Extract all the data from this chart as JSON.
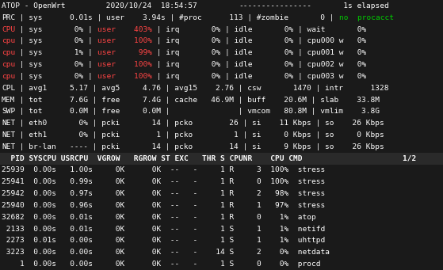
{
  "bg_color": "#1a1a1a",
  "text_color": "#c0c0c0",
  "red_color": "#ff4444",
  "green_color": "#00cc00",
  "title_bg": "#1a1a1a",
  "proc_header_bg": "#2a2a2a",
  "font_size": 6.8,
  "dpi": 100,
  "figw": 5.59,
  "figh": 3.41,
  "lines": [
    {
      "type": "title",
      "parts": [
        {
          "t": "ATOP - OpenWrt",
          "c": "white"
        },
        {
          "t": "         2020/10/24  18:54:57         ",
          "c": "white"
        },
        {
          "t": "----------------",
          "c": "white"
        },
        {
          "t": "       1s elapsed",
          "c": "white"
        }
      ]
    },
    {
      "type": "row",
      "parts": [
        {
          "t": "PRC",
          "c": "white"
        },
        {
          "t": " | sys      0.01s | user    3.94s | #proc      113 | #zombie       0 | ",
          "c": "white"
        },
        {
          "t": "no  procacct",
          "c": "#00cc00"
        }
      ]
    },
    {
      "type": "row",
      "parts": [
        {
          "t": "CPU",
          "c": "#ff4444"
        },
        {
          "t": " | sys       0% | ",
          "c": "white"
        },
        {
          "t": "user    403%",
          "c": "#ff4444"
        },
        {
          "t": " | irq       0% | idle       0% | wait       0%",
          "c": "white"
        }
      ]
    },
    {
      "type": "row",
      "parts": [
        {
          "t": "cpu",
          "c": "#ff4444"
        },
        {
          "t": " | sys       0% | ",
          "c": "white"
        },
        {
          "t": "user    100%",
          "c": "#ff4444"
        },
        {
          "t": " | irq       0% | idle       0% | cpu000 w   0%",
          "c": "white"
        }
      ]
    },
    {
      "type": "row",
      "parts": [
        {
          "t": "cpu",
          "c": "#ff4444"
        },
        {
          "t": " | sys       1% | ",
          "c": "white"
        },
        {
          "t": "user     99%",
          "c": "#ff4444"
        },
        {
          "t": " | irq       0% | idle       0% | cpu001 w   0%",
          "c": "white"
        }
      ]
    },
    {
      "type": "row",
      "parts": [
        {
          "t": "cpu",
          "c": "#ff4444"
        },
        {
          "t": " | sys       0% | ",
          "c": "white"
        },
        {
          "t": "user    100%",
          "c": "#ff4444"
        },
        {
          "t": " | irq       0% | idle       0% | cpu002 w   0%",
          "c": "white"
        }
      ]
    },
    {
      "type": "row",
      "parts": [
        {
          "t": "cpu",
          "c": "#ff4444"
        },
        {
          "t": " | sys       0% | ",
          "c": "white"
        },
        {
          "t": "user    100%",
          "c": "#ff4444"
        },
        {
          "t": " | irq       0% | idle       0% | cpu003 w   0%",
          "c": "white"
        }
      ]
    },
    {
      "type": "row",
      "parts": [
        {
          "t": "CPL",
          "c": "white"
        },
        {
          "t": " | avg1     5.17 | avg5     4.76 | avg15    2.76 | csw       1470 | intr      1328",
          "c": "white"
        }
      ]
    },
    {
      "type": "row",
      "parts": [
        {
          "t": "MEM",
          "c": "white"
        },
        {
          "t": " | tot      7.6G | free     7.4G | cache   46.9M | buff    20.6M | slab    33.8M",
          "c": "white"
        }
      ]
    },
    {
      "type": "row",
      "parts": [
        {
          "t": "SWP",
          "c": "white"
        },
        {
          "t": " | tot      0.0M | free     0.0M |               | vmcom   80.8M | vmlim    3.8G",
          "c": "white"
        }
      ]
    },
    {
      "type": "row",
      "parts": [
        {
          "t": "NET",
          "c": "white"
        },
        {
          "t": " | eth0       0% | pcki       14 | pcko        26 | si    11 Kbps | so    26 Kbps",
          "c": "white"
        }
      ]
    },
    {
      "type": "row",
      "parts": [
        {
          "t": "NET",
          "c": "white"
        },
        {
          "t": " | eth1       0% | pcki        1 | pcko         1 | si     0 Kbps | so     0 Kbps",
          "c": "white"
        }
      ]
    },
    {
      "type": "row",
      "parts": [
        {
          "t": "NET",
          "c": "white"
        },
        {
          "t": " | br-lan   ---- | pcki       14 | pcko        14 | si     9 Kbps | so    26 Kbps",
          "c": "white"
        }
      ]
    },
    {
      "type": "header",
      "parts": [
        {
          "t": "  PID SYSCPU USRCPU  VGROW   RGROW ST EXC   THR S CPUNR    CPU CMD                      1/2",
          "c": "white"
        }
      ]
    },
    {
      "type": "proc",
      "parts": [
        {
          "t": "25939  0.00s   1.00s     0K      0K  --   -     1 R     3  100%  stress",
          "c": "white"
        }
      ]
    },
    {
      "type": "proc",
      "parts": [
        {
          "t": "25941  0.00s   0.99s     0K      0K  --   -     1 R     0  100%  stress",
          "c": "white"
        }
      ]
    },
    {
      "type": "proc",
      "parts": [
        {
          "t": "25942  0.00s   0.97s     0K      0K  --   -     1 R     2   98%  stress",
          "c": "white"
        }
      ]
    },
    {
      "type": "proc",
      "parts": [
        {
          "t": "25940  0.00s   0.96s     0K      0K  --   -     1 R     1   97%  stress",
          "c": "white"
        }
      ]
    },
    {
      "type": "proc",
      "parts": [
        {
          "t": "32682  0.00s   0.01s     0K      0K  --   -     1 R     0    1%  atop",
          "c": "white"
        }
      ]
    },
    {
      "type": "proc",
      "parts": [
        {
          "t": " 2133  0.00s   0.01s     0K      0K  --   -     1 S     1    1%  netifd",
          "c": "white"
        }
      ]
    },
    {
      "type": "proc",
      "parts": [
        {
          "t": " 2273  0.01s   0.00s     0K      0K  --   -     1 S     1    1%  uhttpd",
          "c": "white"
        }
      ]
    },
    {
      "type": "proc",
      "parts": [
        {
          "t": " 3223  0.00s   0.00s     0K      0K  --   -    14 S     2    0%  netdata",
          "c": "white"
        }
      ]
    },
    {
      "type": "proc",
      "parts": [
        {
          "t": "    1  0.00s   0.00s     0K      0K  --   -     1 S     0    0%  procd",
          "c": "white"
        }
      ]
    }
  ]
}
